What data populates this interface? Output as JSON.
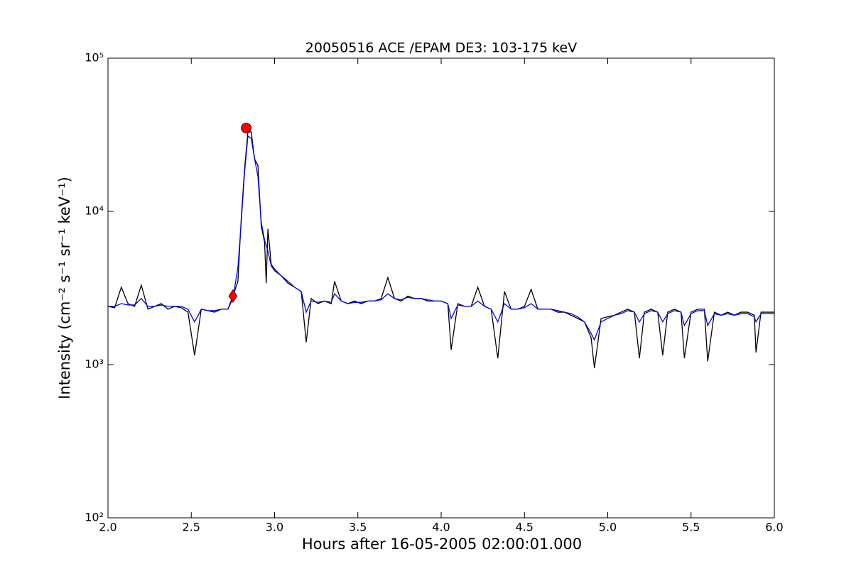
{
  "chart_data": {
    "type": "line",
    "title": "20050516 ACE /EPAM DE3: 103-175 keV",
    "xlabel": "Hours after 16-05-2005 02:00:01.000",
    "ylabel": "Intensity (cm⁻² s⁻¹ sr⁻¹ keV⁻¹)",
    "log_y": true,
    "grid": false,
    "xlim": [
      2.0,
      6.0
    ],
    "ylim": [
      100,
      100000
    ],
    "xticks": [
      {
        "value": 2,
        "label": "2.0"
      },
      {
        "value": 2.5,
        "label": "2.5"
      },
      {
        "value": 3,
        "label": "3.0"
      },
      {
        "value": 3.5,
        "label": "3.5"
      },
      {
        "value": 4,
        "label": "4.0"
      },
      {
        "value": 4.5,
        "label": "4.5"
      },
      {
        "value": 5,
        "label": "5.0"
      },
      {
        "value": 5.5,
        "label": "5.5"
      },
      {
        "value": 6,
        "label": "6.0"
      }
    ],
    "yticks": [
      {
        "value": 100,
        "label": "10²"
      },
      {
        "value": 1000,
        "label": "10³"
      },
      {
        "value": 10000,
        "label": "10⁴"
      },
      {
        "value": 100000,
        "label": "10⁵"
      }
    ],
    "x": [
      2.0,
      2.04,
      2.08,
      2.12,
      2.16,
      2.2,
      2.24,
      2.28,
      2.32,
      2.36,
      2.4,
      2.44,
      2.48,
      2.52,
      2.56,
      2.6,
      2.64,
      2.68,
      2.72,
      2.75,
      2.78,
      2.8,
      2.82,
      2.84,
      2.86,
      2.88,
      2.9,
      2.92,
      2.94,
      2.95,
      2.96,
      2.98,
      3.0,
      3.04,
      3.08,
      3.12,
      3.16,
      3.19,
      3.22,
      3.26,
      3.3,
      3.34,
      3.36,
      3.4,
      3.44,
      3.48,
      3.52,
      3.56,
      3.6,
      3.64,
      3.68,
      3.72,
      3.76,
      3.8,
      3.84,
      3.88,
      3.92,
      3.96,
      4.0,
      4.04,
      4.06,
      4.1,
      4.14,
      4.18,
      4.22,
      4.26,
      4.3,
      4.34,
      4.38,
      4.42,
      4.46,
      4.5,
      4.54,
      4.58,
      4.62,
      4.66,
      4.7,
      4.74,
      4.78,
      4.82,
      4.86,
      4.9,
      4.92,
      4.96,
      5.0,
      5.04,
      5.08,
      5.12,
      5.16,
      5.19,
      5.22,
      5.26,
      5.3,
      5.33,
      5.36,
      5.4,
      5.44,
      5.46,
      5.5,
      5.54,
      5.58,
      5.6,
      5.64,
      5.68,
      5.72,
      5.76,
      5.8,
      5.84,
      5.88,
      5.89,
      5.92,
      5.96,
      6.0
    ],
    "series": [
      {
        "color": "#000000",
        "values": [
          2400,
          2350,
          3200,
          2500,
          2400,
          3300,
          2300,
          2400,
          2500,
          2300,
          2400,
          2350,
          2200,
          1150,
          2300,
          2250,
          2200,
          2300,
          2300,
          2800,
          3500,
          9000,
          19000,
          33000,
          33000,
          22000,
          20000,
          8000,
          6300,
          3400,
          7700,
          4500,
          4200,
          3800,
          3400,
          3200,
          3000,
          1400,
          2700,
          2500,
          2600,
          2500,
          3500,
          2600,
          2500,
          2600,
          2500,
          2600,
          2600,
          2700,
          3700,
          2700,
          2600,
          2800,
          2700,
          2700,
          2600,
          2600,
          2600,
          2500,
          1250,
          2500,
          2400,
          2400,
          3200,
          2400,
          2300,
          1100,
          3000,
          2300,
          2300,
          2400,
          3100,
          2300,
          2300,
          2300,
          2200,
          2200,
          2100,
          2000,
          1900,
          1500,
          950,
          2000,
          2050,
          2100,
          2200,
          2300,
          2200,
          1100,
          2200,
          2300,
          2200,
          1150,
          2200,
          2300,
          2200,
          1100,
          2200,
          2300,
          2300,
          1050,
          2200,
          2100,
          2200,
          2100,
          2200,
          2200,
          2100,
          1200,
          2200,
          2200,
          2200
        ]
      },
      {
        "color": "#0000ff",
        "values": [
          2400,
          2400,
          2500,
          2450,
          2450,
          2700,
          2400,
          2400,
          2450,
          2400,
          2400,
          2400,
          2300,
          1900,
          2300,
          2250,
          2250,
          2300,
          2300,
          2700,
          4300,
          8500,
          18000,
          31000,
          30000,
          22000,
          17000,
          8500,
          6500,
          6000,
          5500,
          4400,
          4100,
          3800,
          3500,
          3200,
          3000,
          2200,
          2600,
          2550,
          2600,
          2550,
          2900,
          2600,
          2500,
          2550,
          2550,
          2600,
          2600,
          2650,
          2900,
          2700,
          2650,
          2750,
          2700,
          2700,
          2650,
          2600,
          2600,
          2500,
          2000,
          2450,
          2400,
          2400,
          2600,
          2400,
          2300,
          1900,
          2500,
          2300,
          2300,
          2350,
          2500,
          2300,
          2300,
          2300,
          2250,
          2200,
          2150,
          2050,
          1900,
          1600,
          1450,
          1900,
          2000,
          2100,
          2150,
          2250,
          2200,
          1900,
          2150,
          2250,
          2200,
          1900,
          2150,
          2250,
          2200,
          1800,
          2150,
          2250,
          2250,
          1800,
          2150,
          2100,
          2150,
          2100,
          2150,
          2150,
          2050,
          1900,
          2150,
          2150,
          2150
        ]
      }
    ],
    "points": [
      {
        "x": 2.75,
        "y": 2800,
        "color": "#ff0000",
        "marker": "diamond"
      },
      {
        "x": 2.83,
        "y": 35000,
        "color": "#ff0000",
        "marker": "circle"
      }
    ]
  }
}
